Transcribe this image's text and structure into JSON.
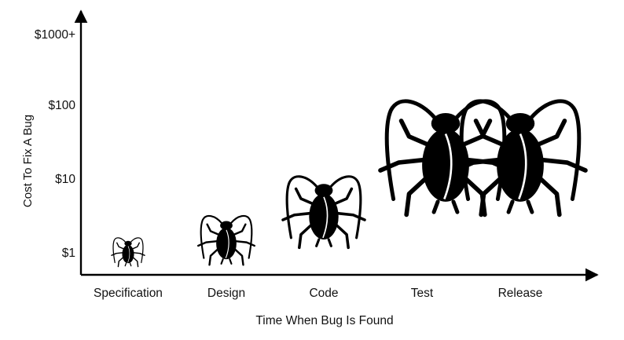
{
  "chart_data": {
    "type": "scatter",
    "title": "",
    "xlabel": "Time When Bug Is Found",
    "ylabel": "Cost To Fix A Bug",
    "y_scale": "log",
    "yticks": [
      1,
      10,
      100,
      1000
    ],
    "ytick_labels": [
      "$1",
      "$10",
      "$100",
      "$1000+"
    ],
    "categories": [
      "Specification",
      "Design",
      "Code",
      "Test",
      "Release"
    ],
    "values": [
      1,
      3,
      10,
      100,
      100
    ],
    "marker": "bug",
    "colors": {
      "bug_fill": "#000000",
      "axis": "#000000"
    },
    "grid": false
  }
}
